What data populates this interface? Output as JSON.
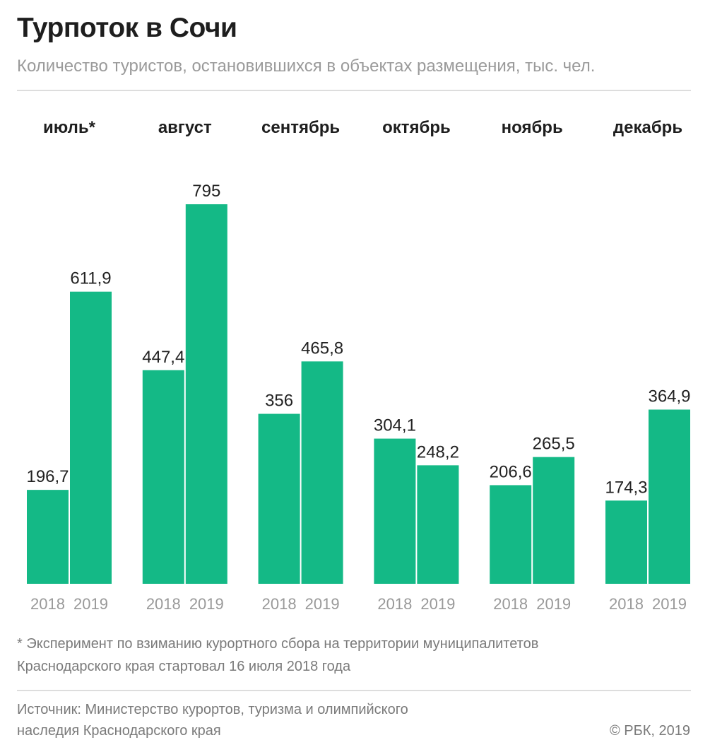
{
  "header": {
    "title": "Турпоток в Сочи",
    "subtitle": "Количество туристов, остановившихся в объектах размещения, тыс. чел."
  },
  "chart_data": {
    "type": "bar",
    "categories": [
      "июль*",
      "август",
      "сентябрь",
      "октябрь",
      "ноябрь",
      "декабрь"
    ],
    "series": [
      {
        "name": "2018",
        "values": [
          196.7,
          447.4,
          356,
          304.1,
          206.6,
          174.3
        ]
      },
      {
        "name": "2019",
        "values": [
          611.9,
          795,
          465.8,
          248.2,
          265.5,
          364.9
        ]
      }
    ],
    "value_labels": {
      "2018": [
        "196,7",
        "447,4",
        "356",
        "304,1",
        "206,6",
        "174,3"
      ],
      "2019": [
        "611,9",
        "795",
        "465,8",
        "248,2",
        "265,5",
        "364,9"
      ]
    },
    "ylim": [
      0,
      795
    ],
    "grid": false,
    "color": "#14b986"
  },
  "footnote": {
    "line1": "* Эксперимент по взиманию курортного сбора на территории муниципалитетов",
    "line2": "Краснодарского края стартовал 16 июля 2018 года"
  },
  "source": {
    "line1": "Источник: Министерство курортов, туризма и олимпийского",
    "line2": "наследия Краснодарского края"
  },
  "copyright": "© РБК, 2019"
}
